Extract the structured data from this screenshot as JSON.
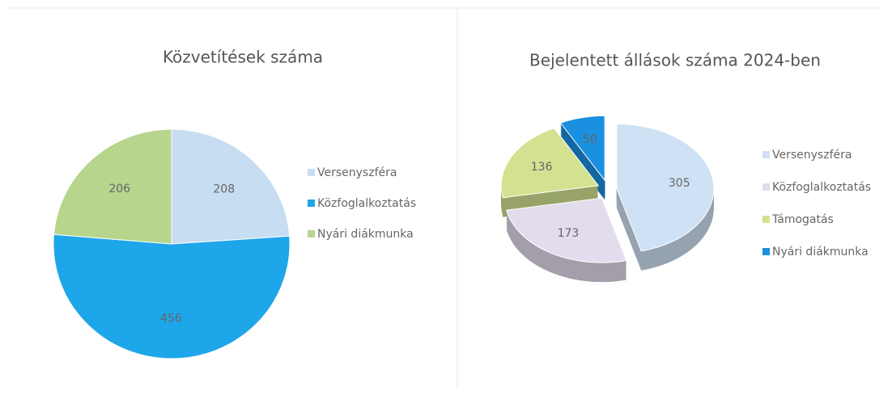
{
  "chart_data": [
    {
      "type": "pie",
      "title": "Közvetítések száma",
      "categories": [
        "Versenyszféra",
        "Közfoglalkoztatás",
        "Nyári diákmunka"
      ],
      "values": [
        208,
        456,
        206
      ],
      "colors": [
        "#c6ddf2",
        "#1ea6ea",
        "#b7d58c"
      ]
    },
    {
      "type": "pie3d",
      "title": "Bejelentett állások száma 2024-ben",
      "categories": [
        "Versenyszféra",
        "Közfoglalkoztatás",
        "Támogatás",
        "Nyári diákmunka"
      ],
      "values": [
        305,
        173,
        136,
        50
      ],
      "colors": [
        "#cfe1f4",
        "#e3dcec",
        "#d2e290",
        "#1a90e0"
      ]
    }
  ]
}
